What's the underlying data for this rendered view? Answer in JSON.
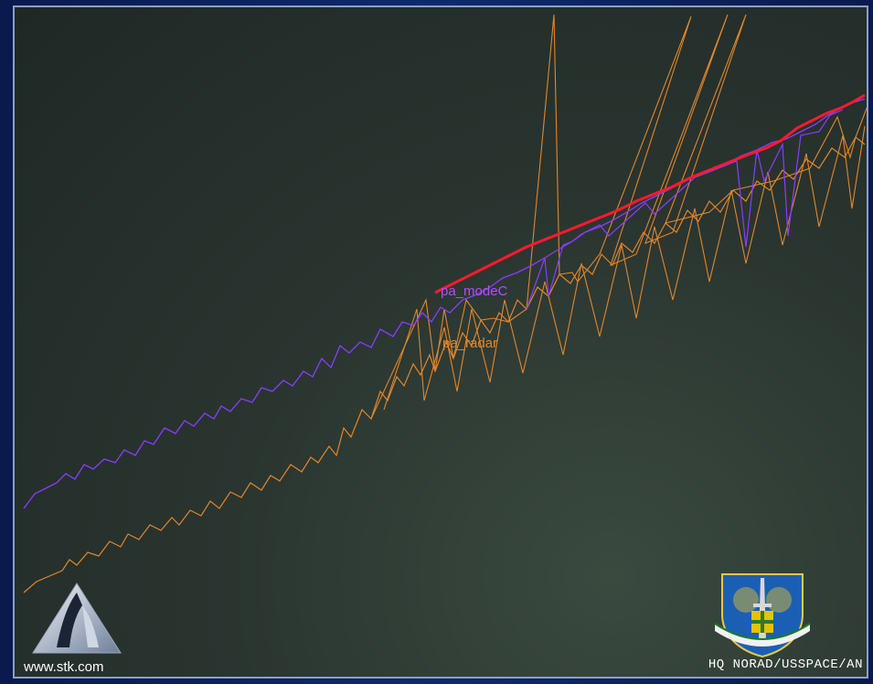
{
  "visualization": {
    "tracks": [
      {
        "label": "pa_modeC",
        "color": "#b24dff"
      },
      {
        "label": "pa_radar",
        "color": "#e2862a"
      }
    ],
    "highlight_color": "#ff1a2e"
  },
  "branding": {
    "url": "www.stk.com",
    "org": "HQ NORAD/USSPACE/AN"
  },
  "colors": {
    "background": "#0e2a6e",
    "frame_border": "#8aa0c8",
    "viewport": "#2a3530"
  }
}
